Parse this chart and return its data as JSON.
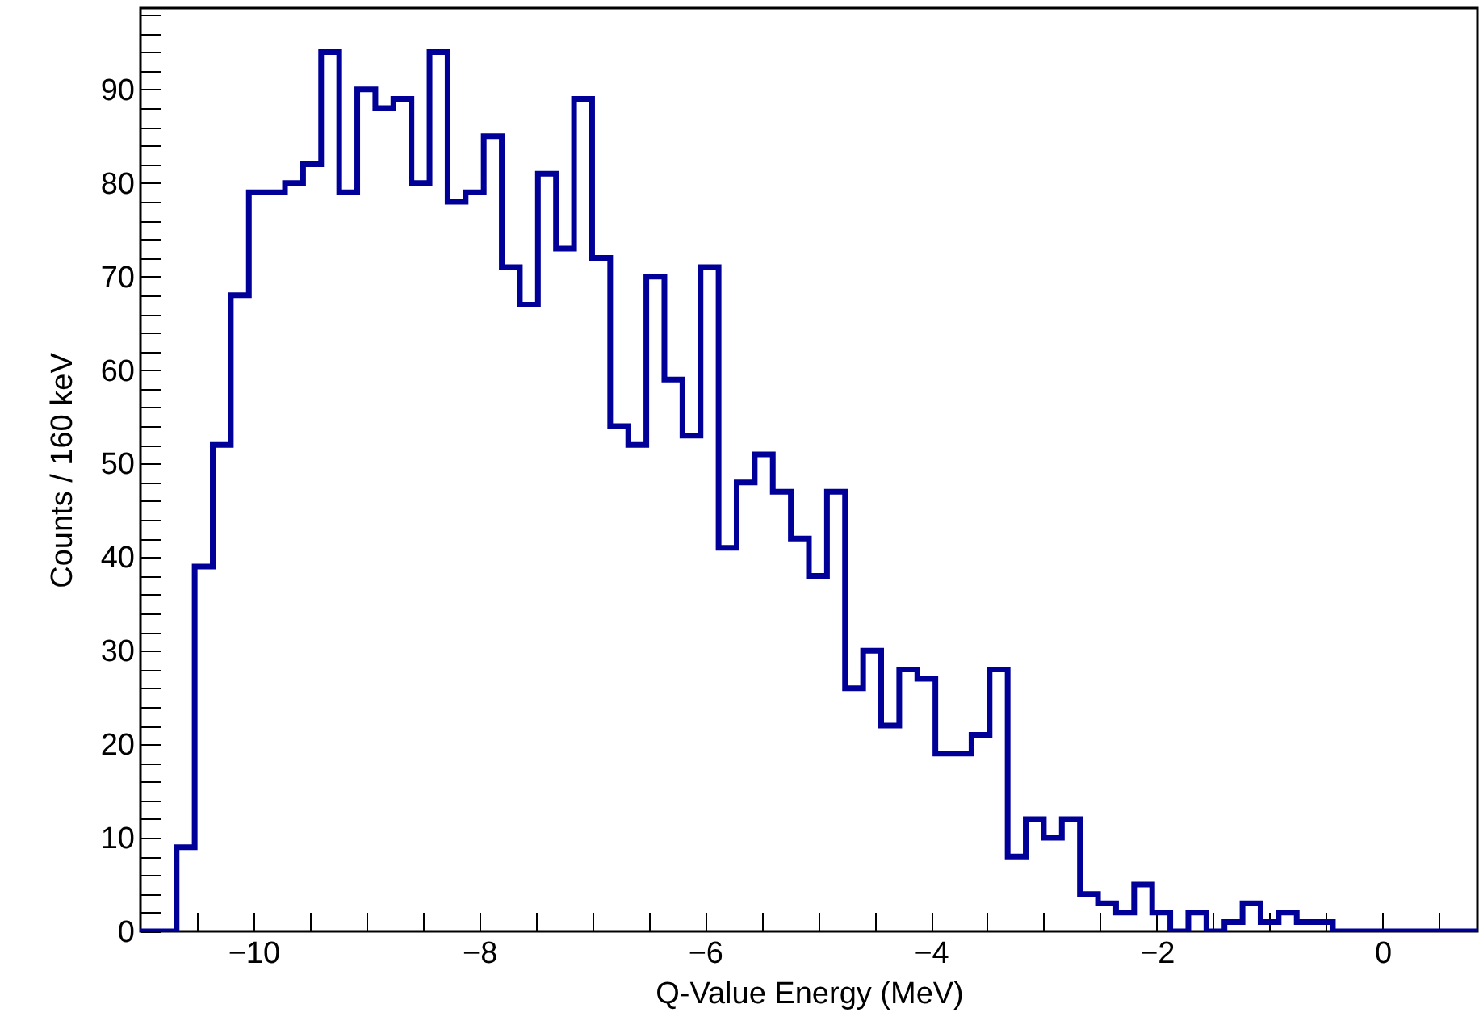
{
  "chart_data": {
    "type": "histogram",
    "xlabel": "Q-Value Energy (MeV)",
    "ylabel": "Counts / 160 keV",
    "color": "#000099",
    "bins": [
      -11.0,
      -10.84,
      -10.68,
      -10.52,
      -10.36,
      -10.2,
      -10.04,
      -9.88,
      -9.72,
      -9.56,
      -9.4,
      -9.24,
      -9.08,
      -8.92,
      -8.76,
      -8.6,
      -8.44,
      -8.28,
      -8.12,
      -7.96,
      -7.8,
      -7.64,
      -7.48,
      -7.32,
      -7.16,
      -7.0,
      -6.84,
      -6.68,
      -6.52,
      -6.36,
      -6.2,
      -6.04,
      -5.88,
      -5.72,
      -5.56,
      -5.4,
      -5.24,
      -5.08,
      -4.92,
      -4.76,
      -4.6,
      -4.44,
      -4.28,
      -4.12,
      -3.96,
      -3.8,
      -3.64,
      -3.48,
      -3.32,
      -3.16,
      -3.0,
      -2.84,
      -2.68,
      -2.52,
      -2.36,
      -2.2,
      -2.04,
      -1.88,
      -1.72,
      -1.56,
      -1.4,
      -1.24,
      -1.08,
      -0.92,
      -0.76,
      -0.6,
      -0.44,
      -0.28,
      -0.12,
      0.04,
      0.2,
      0.36,
      0.52,
      0.68,
      0.84
    ],
    "values": [
      0,
      0,
      9,
      39,
      52,
      68,
      79,
      79,
      80,
      82,
      94,
      79,
      90,
      88,
      89,
      80,
      94,
      78,
      79,
      85,
      71,
      67,
      81,
      73,
      89,
      72,
      54,
      52,
      70,
      59,
      53,
      71,
      41,
      48,
      51,
      47,
      42,
      38,
      47,
      26,
      30,
      22,
      28,
      27,
      19,
      19,
      21,
      28,
      8,
      12,
      10,
      12,
      4,
      3,
      2,
      5,
      2,
      0,
      2,
      0,
      1,
      3,
      1,
      2,
      1,
      1,
      0,
      0,
      0,
      0,
      0,
      0,
      0,
      0
    ],
    "xlim": [
      -11.0,
      0.84
    ],
    "xticks": [
      {
        "value": -10.5,
        "label": null
      },
      -10,
      {
        "value": -9.5,
        "label": null
      },
      {
        "value": -9,
        "label": null
      },
      {
        "value": -8.5,
        "label": null
      },
      -8,
      {
        "value": -7.5,
        "label": null
      },
      {
        "value": -7,
        "label": null
      },
      {
        "value": -6.5,
        "label": null
      },
      -6,
      {
        "value": -5.5,
        "label": null
      },
      {
        "value": -5,
        "label": null
      },
      {
        "value": -4.5,
        "label": null
      },
      -4,
      {
        "value": -3.5,
        "label": null
      },
      {
        "value": -3,
        "label": null
      },
      {
        "value": -2.5,
        "label": null
      },
      -2,
      {
        "value": -1.5,
        "label": null
      },
      {
        "value": -1,
        "label": null
      },
      {
        "value": -0.5,
        "label": null
      },
      0,
      {
        "value": 0.5,
        "label": null
      }
    ],
    "ylim": [
      0,
      98.7
    ],
    "yticks": [
      0,
      {
        "value": 2,
        "label": null
      },
      {
        "value": 4,
        "label": null
      },
      {
        "value": 6,
        "label": null
      },
      {
        "value": 8,
        "label": null
      },
      10,
      {
        "value": 12,
        "label": null
      },
      {
        "value": 14,
        "label": null
      },
      {
        "value": 16,
        "label": null
      },
      {
        "value": 18,
        "label": null
      },
      20,
      {
        "value": 22,
        "label": null
      },
      {
        "value": 24,
        "label": null
      },
      {
        "value": 26,
        "label": null
      },
      {
        "value": 28,
        "label": null
      },
      30,
      {
        "value": 32,
        "label": null
      },
      {
        "value": 34,
        "label": null
      },
      {
        "value": 36,
        "label": null
      },
      {
        "value": 38,
        "label": null
      },
      40,
      {
        "value": 42,
        "label": null
      },
      {
        "value": 44,
        "label": null
      },
      {
        "value": 46,
        "label": null
      },
      {
        "value": 48,
        "label": null
      },
      50,
      {
        "value": 52,
        "label": null
      },
      {
        "value": 54,
        "label": null
      },
      {
        "value": 56,
        "label": null
      },
      {
        "value": 58,
        "label": null
      },
      60,
      {
        "value": 62,
        "label": null
      },
      {
        "value": 64,
        "label": null
      },
      {
        "value": 66,
        "label": null
      },
      {
        "value": 68,
        "label": null
      },
      70,
      {
        "value": 72,
        "label": null
      },
      {
        "value": 74,
        "label": null
      },
      {
        "value": 76,
        "label": null
      },
      {
        "value": 78,
        "label": null
      },
      80,
      {
        "value": 82,
        "label": null
      },
      {
        "value": 84,
        "label": null
      },
      {
        "value": 86,
        "label": null
      },
      {
        "value": 88,
        "label": null
      },
      90,
      {
        "value": 92,
        "label": null
      },
      {
        "value": 94,
        "label": null
      },
      {
        "value": 96,
        "label": null
      },
      {
        "value": 98,
        "label": null
      }
    ]
  }
}
